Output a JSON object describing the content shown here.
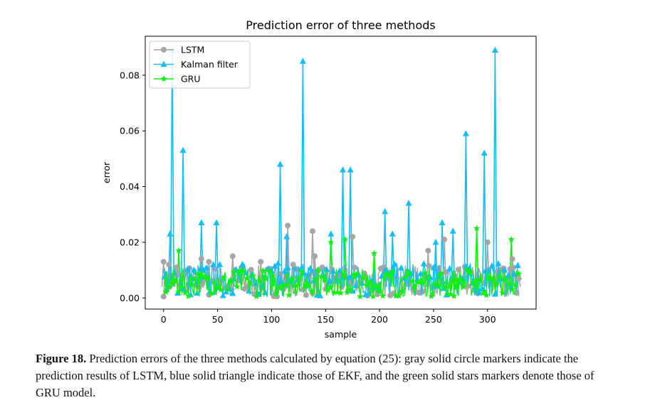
{
  "chart_data": {
    "type": "line",
    "title": "Prediction error of three methods",
    "xlabel": "sample",
    "ylabel": "error",
    "xlim": [
      -17,
      345
    ],
    "ylim": [
      -0.004,
      0.094
    ],
    "xticks": [
      0,
      50,
      100,
      150,
      200,
      250,
      300
    ],
    "xtick_labels": [
      "0",
      "50",
      "100",
      "150",
      "200",
      "250",
      "300"
    ],
    "yticks": [
      0.0,
      0.02,
      0.04,
      0.06,
      0.08
    ],
    "ytick_labels": [
      "0.00",
      "0.02",
      "0.04",
      "0.06",
      "0.08"
    ],
    "legend_position": "top-left",
    "grid": false,
    "series": [
      {
        "name": "LSTM",
        "color": "#a6a6a6",
        "marker": "circle",
        "points": [
          [
            0,
            0.013
          ],
          [
            5,
            0.012
          ],
          [
            12,
            0.011
          ],
          [
            35,
            0.014
          ],
          [
            42,
            0.013
          ],
          [
            64,
            0.015
          ],
          [
            90,
            0.013
          ],
          [
            115,
            0.026
          ],
          [
            120,
            0.012
          ],
          [
            138,
            0.024
          ],
          [
            140,
            0.015
          ],
          [
            175,
            0.022
          ],
          [
            245,
            0.017
          ],
          [
            260,
            0.021
          ],
          [
            300,
            0.02
          ],
          [
            323,
            0.014
          ],
          [
            329,
            0.007
          ]
        ]
      },
      {
        "name": "Kalman filter",
        "color": "#14bef0",
        "marker": "triangle",
        "points": [
          [
            6,
            0.023
          ],
          [
            8,
            0.089
          ],
          [
            18,
            0.053
          ],
          [
            35,
            0.027
          ],
          [
            49,
            0.027
          ],
          [
            108,
            0.048
          ],
          [
            114,
            0.022
          ],
          [
            129,
            0.085
          ],
          [
            155,
            0.023
          ],
          [
            166,
            0.046
          ],
          [
            173,
            0.046
          ],
          [
            205,
            0.031
          ],
          [
            212,
            0.023
          ],
          [
            227,
            0.034
          ],
          [
            252,
            0.02
          ],
          [
            258,
            0.027
          ],
          [
            268,
            0.024
          ],
          [
            280,
            0.059
          ],
          [
            297,
            0.052
          ],
          [
            307,
            0.089
          ]
        ]
      },
      {
        "name": "GRU",
        "color": "#0ef00e",
        "marker": "star",
        "points": [
          [
            14,
            0.017
          ],
          [
            155,
            0.02
          ],
          [
            168,
            0.021
          ],
          [
            195,
            0.016
          ],
          [
            290,
            0.025
          ],
          [
            322,
            0.021
          ]
        ]
      }
    ]
  },
  "caption": {
    "label": "Figure 18.",
    "text": " Prediction errors of the three methods calculated by equation (25): gray solid circle markers indicate the prediction results of LSTM, blue solid triangle indicate those of EKF, and the green solid stars markers denote those of GRU model."
  }
}
